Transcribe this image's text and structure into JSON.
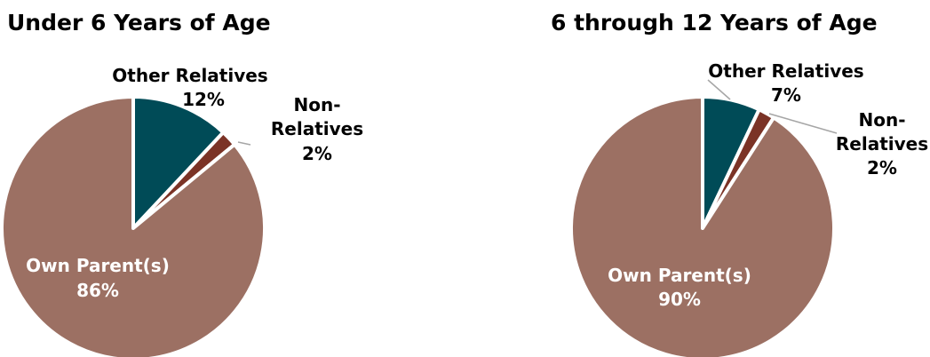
{
  "chart_data": [
    {
      "type": "pie",
      "title": "Under 6 Years of Age",
      "slices": [
        {
          "label": "Other Relatives",
          "value": 12,
          "value_label": "12%",
          "color": "#004b57"
        },
        {
          "label": "Non-Relatives",
          "label_lines": [
            "Non-",
            "Relatives"
          ],
          "value": 2,
          "value_label": "2%",
          "color": "#7b3326"
        },
        {
          "label": "Own Parent(s)",
          "value": 86,
          "value_label": "86%",
          "color": "#9c7063"
        }
      ]
    },
    {
      "type": "pie",
      "title": "6 through 12 Years of Age",
      "slices": [
        {
          "label": "Other Relatives",
          "value": 7,
          "value_label": "7%",
          "color": "#004b57"
        },
        {
          "label": "Non-Relatives",
          "label_lines": [
            "Non-",
            "Relatives"
          ],
          "value": 2,
          "value_label": "2%",
          "color": "#7b3326"
        },
        {
          "label": "Own Parent(s)",
          "value": 90,
          "value_label": "90%",
          "color": "#9c7063"
        }
      ]
    }
  ]
}
